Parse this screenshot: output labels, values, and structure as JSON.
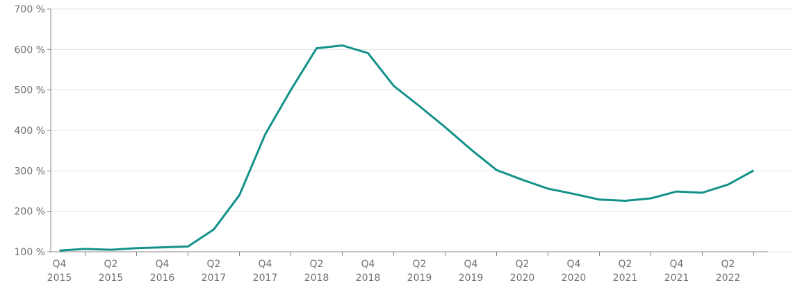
{
  "chart_data": {
    "type": "line",
    "categories": [
      "Q4 2015",
      null,
      "Q2 2015",
      null,
      "Q4 2016",
      null,
      "Q2 2017",
      null,
      "Q4 2017",
      null,
      "Q2 2018",
      null,
      "Q4 2018",
      null,
      "Q2 2019",
      null,
      "Q4 2019",
      null,
      "Q2 2020",
      null,
      "Q4 2020",
      null,
      "Q2 2021",
      null,
      "Q4 2021",
      null,
      "Q2 2022",
      null
    ],
    "series": [
      {
        "color": "#13918a",
        "values": [
          103,
          107,
          105,
          109,
          111,
          113,
          155,
          240,
          390,
          500,
          603,
          610,
          591,
          510,
          460,
          408,
          353,
          302,
          278,
          256,
          243,
          229,
          226,
          232,
          249,
          246,
          266,
          301
        ]
      }
    ],
    "ylim": [
      100,
      700
    ],
    "yticks": [
      {
        "value": 100,
        "label": "100 %"
      },
      {
        "value": 200,
        "label": "200 %"
      },
      {
        "value": 300,
        "label": "300 %"
      },
      {
        "value": 400,
        "label": "400 %"
      },
      {
        "value": 500,
        "label": "500 %"
      },
      {
        "value": 600,
        "label": "600 %"
      },
      {
        "value": 700,
        "label": "700 %"
      }
    ],
    "grid": true
  }
}
